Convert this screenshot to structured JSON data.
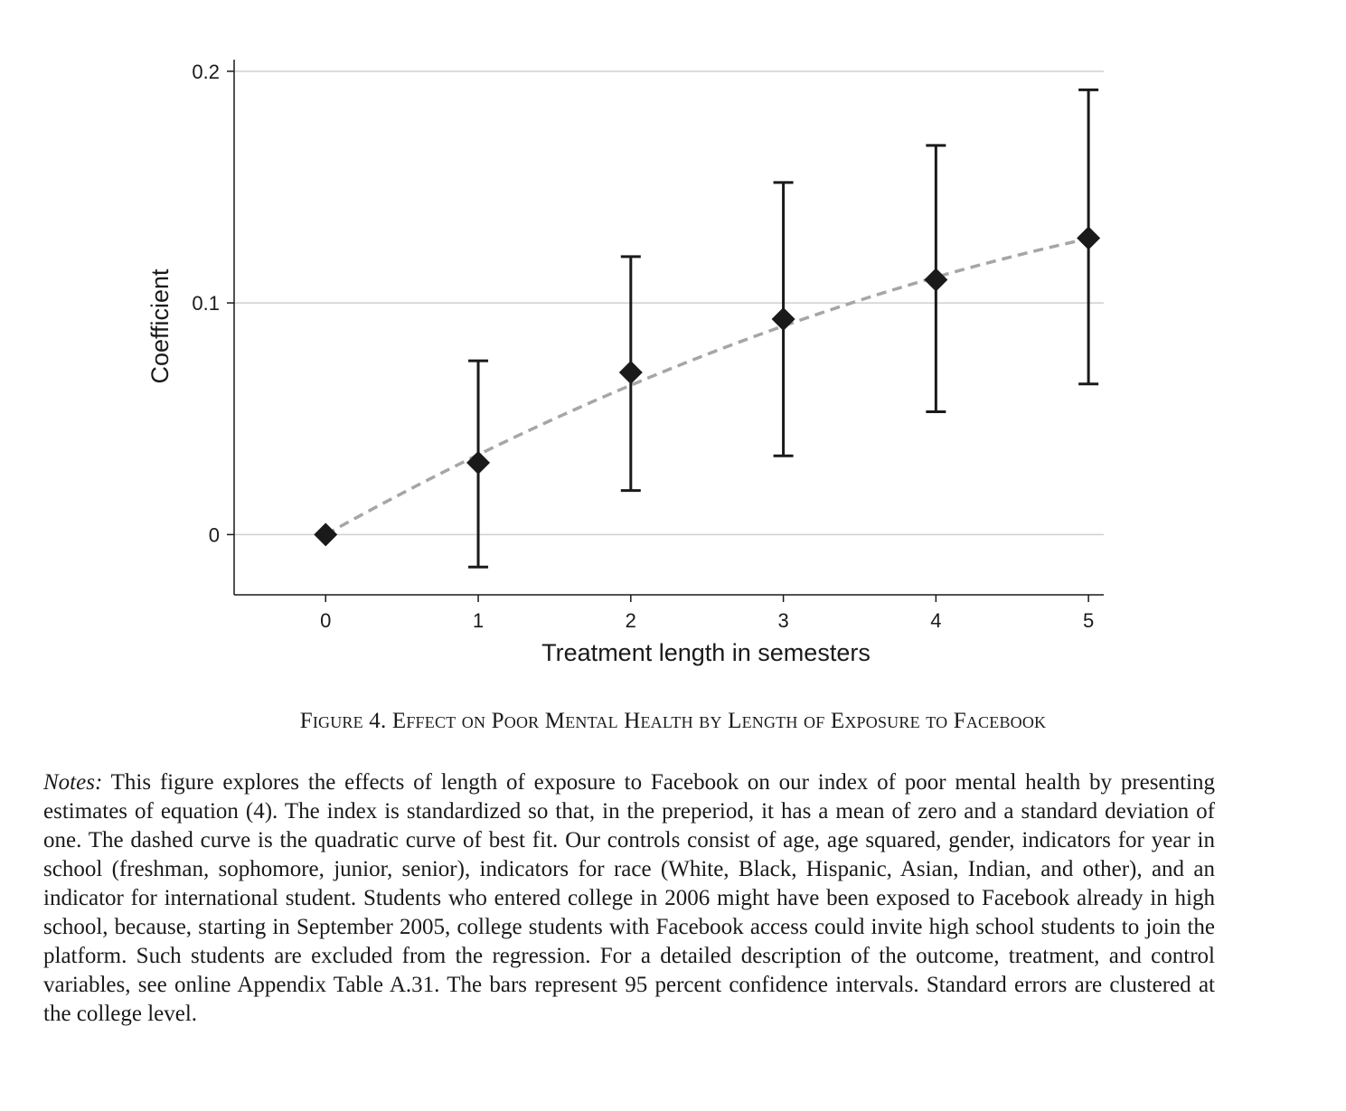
{
  "chart_data": {
    "type": "scatter",
    "xlabel": "Treatment length in semesters",
    "ylabel": "Coefficient",
    "x_ticks": [
      "0",
      "1",
      "2",
      "3",
      "4",
      "5"
    ],
    "y_ticks": [
      "0",
      "0.1",
      "0.2"
    ],
    "xlim": [
      -0.6,
      5.1
    ],
    "ylim": [
      -0.026,
      0.205
    ],
    "grid": true,
    "points": [
      {
        "x": 0,
        "y": 0.0,
        "ci_low": null,
        "ci_high": null
      },
      {
        "x": 1,
        "y": 0.031,
        "ci_low": -0.014,
        "ci_high": 0.075
      },
      {
        "x": 2,
        "y": 0.07,
        "ci_low": 0.019,
        "ci_high": 0.12
      },
      {
        "x": 3,
        "y": 0.093,
        "ci_low": 0.034,
        "ci_high": 0.152
      },
      {
        "x": 4,
        "y": 0.11,
        "ci_low": 0.053,
        "ci_high": 0.168
      },
      {
        "x": 5,
        "y": 0.128,
        "ci_low": 0.065,
        "ci_high": 0.192
      }
    ],
    "fit": {
      "type": "quadratic",
      "coefficients": [
        0.0,
        0.0367,
        -0.00223
      ],
      "style": "dashed",
      "color": "#a6a6a6"
    },
    "marker_color": "#1a1a1a",
    "errorbar_color": "#1a1a1a",
    "grid_color": "#cfcfcf"
  },
  "caption": "Figure 4. Effect on Poor Mental Health by Length of Exposure to Facebook",
  "notes": {
    "label": "Notes:",
    "text": "This figure explores the effects of length of exposure to Facebook on our index of poor mental health by presenting estimates of equation (4). The index is standardized so that, in the preperiod, it has a mean of zero and a standard deviation of one. The dashed curve is the quadratic curve of best fit. Our controls consist of age, age squared, gender, indicators for year in school (freshman, sophomore, junior, senior), indicators for race (White, Black, Hispanic, Asian, Indian, and other), and an indicator for international student. Students who entered college in 2006 might have been exposed to Facebook already in high school, because, starting in September 2005, college students with Facebook access could invite high school students to join the platform. Such students are excluded from the regression. For a detailed description of the outcome, treatment, and control variables, see online Appendix Table A.31. The bars represent 95 percent confidence intervals. Standard errors are clustered at the college level."
  }
}
